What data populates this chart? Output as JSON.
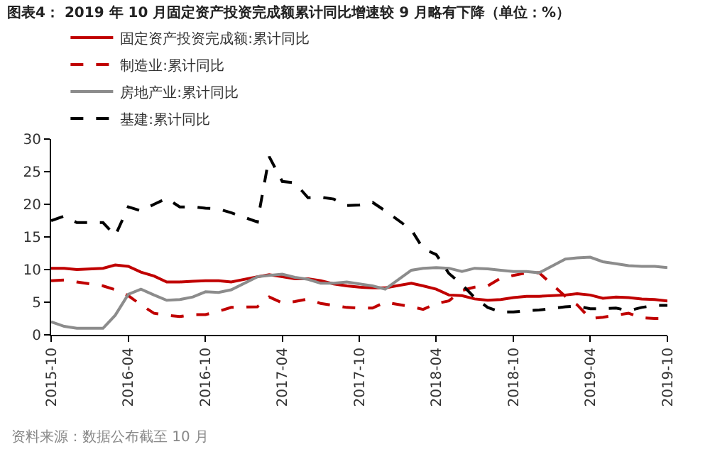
{
  "chart_data": {
    "type": "line",
    "title": "图表4： 2019 年 10 月固定资产投资完成额累计同比增速较 9 月略有下降（单位：%）",
    "x": [
      "2015-10",
      "2015-11",
      "2015-12",
      "2016-02",
      "2016-03",
      "2016-04",
      "2016-05",
      "2016-06",
      "2016-07",
      "2016-08",
      "2016-09",
      "2016-10",
      "2016-11",
      "2016-12",
      "2017-02",
      "2017-03",
      "2017-04",
      "2017-05",
      "2017-06",
      "2017-07",
      "2017-08",
      "2017-09",
      "2017-10",
      "2017-11",
      "2017-12",
      "2018-02",
      "2018-03",
      "2018-04",
      "2018-05",
      "2018-06",
      "2018-07",
      "2018-08",
      "2018-09",
      "2018-10",
      "2018-11",
      "2018-12",
      "2019-02",
      "2019-03",
      "2019-04",
      "2019-05",
      "2019-06",
      "2019-07",
      "2019-08",
      "2019-09",
      "2019-10"
    ],
    "series": [
      {
        "name": "固定资产投资完成额:累计同比",
        "color": "#c00000",
        "line_style": "solid",
        "values": [
          10.2,
          10.2,
          10.0,
          10.2,
          10.7,
          10.5,
          9.6,
          9.0,
          8.1,
          8.1,
          8.2,
          8.3,
          8.3,
          8.1,
          8.9,
          9.2,
          8.9,
          8.6,
          8.6,
          8.3,
          7.8,
          7.5,
          7.3,
          7.2,
          7.2,
          7.9,
          7.5,
          7.0,
          6.1,
          6.0,
          5.5,
          5.3,
          5.4,
          5.7,
          5.9,
          5.9,
          6.1,
          6.3,
          6.1,
          5.6,
          5.8,
          5.7,
          5.5,
          5.4,
          5.2
        ]
      },
      {
        "name": "制造业:累计同比",
        "color": "#c00000",
        "line_style": "dashed",
        "values": [
          8.3,
          8.4,
          8.1,
          7.5,
          6.9,
          6.0,
          4.6,
          3.3,
          3.0,
          2.8,
          3.1,
          3.1,
          3.6,
          4.2,
          4.3,
          5.8,
          4.9,
          5.1,
          5.5,
          4.8,
          4.5,
          4.2,
          4.1,
          4.1,
          5.0,
          4.3,
          3.9,
          4.8,
          5.2,
          6.8,
          7.3,
          7.5,
          8.7,
          9.1,
          9.5,
          9.5,
          5.9,
          4.6,
          2.5,
          2.7,
          3.0,
          3.3,
          2.6,
          2.5,
          2.5
        ]
      },
      {
        "name": "房地产业:累计同比",
        "color": "#8c8c8c",
        "line_style": "solid",
        "values": [
          2.0,
          1.3,
          1.0,
          1.0,
          3.0,
          6.2,
          7.0,
          6.1,
          5.3,
          5.4,
          5.8,
          6.6,
          6.5,
          6.9,
          8.9,
          9.1,
          9.3,
          8.8,
          8.5,
          7.9,
          7.9,
          8.1,
          7.8,
          7.5,
          7.0,
          9.9,
          10.2,
          10.3,
          10.2,
          9.7,
          10.2,
          10.1,
          9.9,
          9.7,
          9.7,
          9.5,
          11.6,
          11.8,
          11.9,
          11.2,
          10.9,
          10.6,
          10.5,
          10.5,
          10.3
        ]
      },
      {
        "name": "基建:累计同比",
        "color": "#000000",
        "line_style": "dashed",
        "values": [
          17.5,
          18.2,
          17.2,
          17.2,
          15.2,
          19.6,
          19.0,
          20.0,
          20.9,
          19.6,
          19.6,
          19.4,
          19.3,
          18.7,
          17.3,
          27.3,
          23.5,
          23.3,
          21.0,
          21.1,
          20.8,
          19.8,
          19.9,
          20.3,
          19.0,
          16.1,
          13.2,
          12.3,
          9.4,
          7.7,
          5.7,
          4.2,
          3.5,
          3.5,
          3.7,
          3.8,
          4.3,
          4.4,
          4.0,
          4.0,
          4.1,
          3.7,
          4.2,
          4.5,
          4.5
        ]
      }
    ],
    "xlim": [
      "2015-10",
      "2019-10"
    ],
    "xticks": [
      "2015-10",
      "2016-04",
      "2016-10",
      "2017-04",
      "2017-10",
      "2018-04",
      "2018-10",
      "2019-04",
      "2019-10"
    ],
    "ylim": [
      0,
      30
    ],
    "yticks": [
      0,
      5,
      10,
      15,
      20,
      25,
      30
    ],
    "grid": false,
    "legend": "top",
    "marker": "none",
    "annotations": [
      "资料来源：数据公布截至 10 月"
    ]
  }
}
